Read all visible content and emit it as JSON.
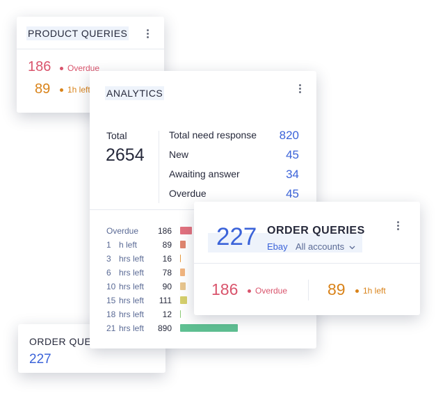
{
  "product_queries": {
    "title": "PRODUCT QUERIES",
    "overdue_count": 186,
    "overdue_label": "Overdue",
    "soon_count": 89,
    "soon_label": "1h left"
  },
  "analytics": {
    "title": "ANALYTICS",
    "total_label": "Total",
    "total": 2654,
    "stats": [
      {
        "label": "Total need response",
        "value": 820
      },
      {
        "label": "New",
        "value": 45
      },
      {
        "label": "Awaiting answer",
        "value": 34
      },
      {
        "label": "Overdue",
        "value": 45
      }
    ],
    "breakdown": [
      {
        "label": "Overdue",
        "value": 186,
        "color": "#e2727f"
      },
      {
        "hours": "1",
        "label": "h left",
        "value": 89,
        "color": "#e0866f"
      },
      {
        "hours": "3",
        "label": "hrs left",
        "value": 16,
        "color": "#e89a3f"
      },
      {
        "hours": "6",
        "label": "hrs left",
        "value": 78,
        "color": "#f1b57f"
      },
      {
        "hours": "10",
        "label": "hrs left",
        "value": 90,
        "color": "#e8c68e"
      },
      {
        "hours": "15",
        "label": "hrs left",
        "value": 111,
        "color": "#d6d06c"
      },
      {
        "hours": "18",
        "label": "hrs left",
        "value": 12,
        "color": "#8ccb77"
      },
      {
        "hours": "21",
        "label": "hrs left",
        "value": 890,
        "color": "#5fc092"
      }
    ]
  },
  "order_queries": {
    "count": 227,
    "title": "ORDER QUERIES",
    "source": "Ebay",
    "accounts": "All accounts",
    "overdue_count": 186,
    "overdue_label": "Overdue",
    "soon_count": 89,
    "soon_label": "1h left"
  },
  "order_queries_mini": {
    "title": "ORDER QUERIES",
    "count": 227
  }
}
